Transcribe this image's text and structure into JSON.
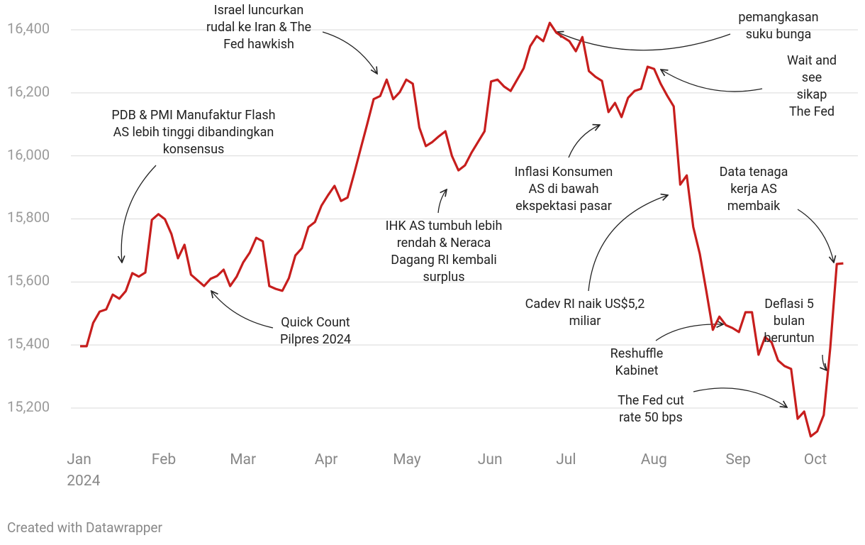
{
  "chart_data": {
    "type": "line",
    "categories": [
      null,
      "Jan 2024",
      null,
      null,
      null,
      null,
      null,
      null,
      null,
      null,
      null,
      null,
      null,
      null,
      "Feb",
      null,
      null,
      null,
      null,
      null,
      null,
      null,
      null,
      null,
      null,
      null,
      "Mar",
      null,
      null,
      null,
      null,
      null,
      null,
      null,
      null,
      null,
      null,
      null,
      null,
      "Apr",
      null,
      null,
      null,
      null,
      null,
      null,
      null,
      null,
      null,
      null,
      null,
      "May",
      null,
      null,
      null,
      null,
      null,
      null,
      null,
      null,
      null,
      null,
      null,
      null,
      "Jun",
      null,
      null,
      null,
      null,
      null,
      null,
      null,
      null,
      null,
      null,
      null,
      "Jul",
      null,
      null,
      null,
      null,
      null,
      null,
      null,
      null,
      null,
      null,
      null,
      null,
      "Aug",
      null,
      null,
      null,
      null,
      null,
      null,
      null,
      null,
      null,
      null,
      null,
      null,
      "Sep",
      null,
      null,
      null,
      null,
      null,
      null,
      null,
      null,
      null,
      null,
      null,
      "Oct",
      null,
      null,
      null
    ],
    "values": [
      15396,
      15396,
      15470,
      15506,
      15513,
      15560,
      15547,
      15571,
      15628,
      15617,
      15630,
      15797,
      15815,
      15799,
      15752,
      15675,
      15718,
      15623,
      15605,
      15587,
      15610,
      15619,
      15639,
      15587,
      15617,
      15662,
      15693,
      15740,
      15729,
      15587,
      15578,
      15572,
      15612,
      15684,
      15707,
      15774,
      15790,
      15842,
      15875,
      15905,
      15857,
      15868,
      15943,
      16022,
      16100,
      16180,
      16190,
      16242,
      16180,
      16202,
      16242,
      16229,
      16090,
      16031,
      16044,
      16062,
      16078,
      16000,
      15954,
      15970,
      16010,
      16044,
      16078,
      16236,
      16242,
      16220,
      16206,
      16242,
      16278,
      16348,
      16380,
      16364,
      16422,
      16391,
      16377,
      16364,
      16332,
      16377,
      16269,
      16251,
      16238,
      16139,
      16168,
      16123,
      16184,
      16206,
      16213,
      16283,
      16276,
      16229,
      16191,
      16157,
      15909,
      15938,
      15774,
      15689,
      15571,
      15448,
      15490,
      15463,
      15454,
      15441,
      15504,
      15504,
      15369,
      15425,
      15409,
      15351,
      15333,
      15324,
      15166,
      15189,
      15110,
      15126,
      15178,
      15391,
      15657,
      15659
    ],
    "color": "#c71e1d",
    "ylim": [
      15100,
      16450
    ],
    "yticks": [
      {
        "value": 15200,
        "label": "15,200"
      },
      {
        "value": 15400,
        "label": "15,400"
      },
      {
        "value": 15600,
        "label": "15,600"
      },
      {
        "value": 15800,
        "label": "15,800"
      },
      {
        "value": 16000,
        "label": "16,000"
      },
      {
        "value": 16200,
        "label": "16,200"
      },
      {
        "value": 16400,
        "label": "16,400"
      }
    ],
    "grid": true,
    "annotations": [
      "Israel luncurkan\nrudal ke Iran & The\nFed hawkish",
      "pemangkasan\nsuku bunga",
      "Wait and see\nsikap The Fed",
      "PDB & PMI Manufaktur Flash\nAS lebih tinggi dibandingkan\nkonsensus",
      "Inflasi Konsumen\nAS di bawah\nekspektasi pasar",
      "Data tenaga\nkerja AS\nmembaik",
      "IHK AS tumbuh lebih\nrendah & Neraca\nDagang RI kembali\nsurplus",
      "Quick Count\nPilpres 2024",
      "Cadev RI naik US$5,2\nmiliar",
      "Deflasi 5\nbulan\nberuntun",
      "Reshuffle\nKabinet",
      "The Fed cut\nrate 50 bps"
    ],
    "footer": "Created with Datawrapper"
  }
}
